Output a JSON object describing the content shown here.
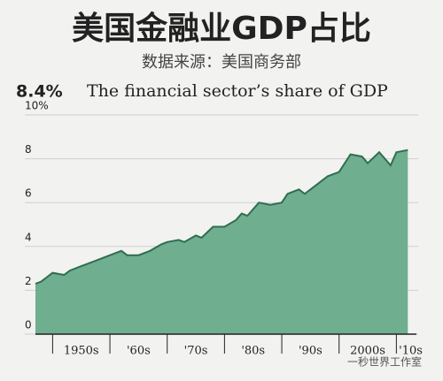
{
  "chart_data": {
    "type": "area",
    "title": "美国金融业GDP占比",
    "subtitle": "数据来源：美国商务部",
    "headline_value": "8.4%",
    "headline_text": "The financial sector’s share of GDP",
    "watermark": "一秒世界工作室",
    "x": [
      1947,
      1948,
      1950,
      1952,
      1953,
      1955,
      1957,
      1959,
      1960,
      1962,
      1963,
      1965,
      1967,
      1969,
      1970,
      1972,
      1973,
      1975,
      1976,
      1978,
      1980,
      1982,
      1983,
      1984,
      1986,
      1988,
      1990,
      1991,
      1993,
      1994,
      1996,
      1998,
      2000,
      2002,
      2004,
      2005,
      2007,
      2009,
      2010,
      2012
    ],
    "values": [
      2.3,
      2.4,
      2.8,
      2.7,
      2.9,
      3.1,
      3.3,
      3.5,
      3.6,
      3.8,
      3.6,
      3.6,
      3.8,
      4.1,
      4.2,
      4.3,
      4.2,
      4.5,
      4.4,
      4.9,
      4.9,
      5.2,
      5.5,
      5.4,
      6.0,
      5.9,
      6.0,
      6.4,
      6.6,
      6.4,
      6.8,
      7.2,
      7.4,
      8.2,
      8.1,
      7.8,
      8.3,
      7.7,
      8.3,
      8.4
    ],
    "color": "#6fae8e",
    "line_color": "#2f6e50",
    "xlim": [
      1947,
      2013.5
    ],
    "xticks": [
      1950,
      1960,
      1970,
      1980,
      1990,
      2000,
      2010
    ],
    "decade_labels": [
      "1950s",
      "'60s",
      "'70s",
      "'80s",
      "'90s",
      "2000s",
      "'10s"
    ],
    "ylim": [
      0,
      10
    ],
    "yticks": [
      0,
      2,
      4,
      6,
      8,
      {
        "value": 10,
        "label": "10%"
      }
    ],
    "grid": true
  }
}
